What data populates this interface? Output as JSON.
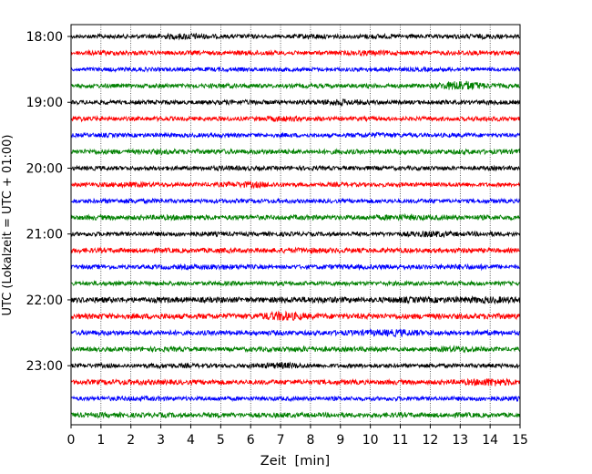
{
  "chart_data": {
    "type": "line",
    "title": "",
    "xlabel": "Zeit  [min]",
    "ylabel": "UTC (Lokalzeit = UTC + 01:00)",
    "xlim": [
      0,
      15
    ],
    "x_ticks": [
      0,
      1,
      2,
      3,
      4,
      5,
      6,
      7,
      8,
      9,
      10,
      11,
      12,
      13,
      14,
      15
    ],
    "y_tick_labels": [
      "18:00",
      "19:00",
      "20:00",
      "21:00",
      "22:00",
      "23:00"
    ],
    "grid": {
      "x": true,
      "y": false,
      "style": "dotted"
    },
    "trace_interval_min": 15,
    "start_time": "18:00",
    "color_cycle": [
      "#000000",
      "#ff0000",
      "#0000ff",
      "#008000"
    ],
    "series": [
      {
        "start": "18:00",
        "values": [
          0.25,
          0.35,
          0.3,
          0.4,
          0.55,
          0.3,
          0.35,
          0.25,
          0.45,
          0.3,
          0.4,
          0.35,
          0.3,
          0.35,
          0.4,
          0.3
        ]
      },
      {
        "start": "18:15",
        "values": [
          0.3,
          0.4,
          0.35,
          0.3,
          0.35,
          0.3,
          0.4,
          0.35,
          0.3,
          0.35,
          0.45,
          0.35,
          0.3,
          0.4,
          0.35,
          0.3
        ]
      },
      {
        "start": "18:30",
        "values": [
          0.3,
          0.3,
          0.35,
          0.3,
          0.3,
          0.35,
          0.3,
          0.35,
          0.3,
          0.3,
          0.35,
          0.3,
          0.35,
          0.3,
          0.3,
          0.3
        ]
      },
      {
        "start": "18:45",
        "values": [
          0.3,
          0.35,
          0.3,
          0.35,
          0.3,
          0.4,
          0.35,
          0.3,
          0.35,
          0.3,
          0.35,
          0.3,
          0.35,
          0.9,
          0.4,
          0.3
        ]
      },
      {
        "start": "19:00",
        "values": [
          0.3,
          0.35,
          0.3,
          0.35,
          0.3,
          0.35,
          0.4,
          0.3,
          0.35,
          0.55,
          0.35,
          0.3,
          0.35,
          0.3,
          0.4,
          0.3
        ]
      },
      {
        "start": "19:15",
        "values": [
          0.45,
          0.35,
          0.3,
          0.35,
          0.3,
          0.35,
          0.3,
          0.5,
          0.35,
          0.3,
          0.35,
          0.3,
          0.35,
          0.3,
          0.4,
          0.3
        ]
      },
      {
        "start": "19:30",
        "values": [
          0.3,
          0.35,
          0.3,
          0.35,
          0.3,
          0.35,
          0.3,
          0.35,
          0.3,
          0.3,
          0.45,
          0.35,
          0.3,
          0.35,
          0.3,
          0.3
        ]
      },
      {
        "start": "19:45",
        "values": [
          0.35,
          0.4,
          0.35,
          0.45,
          0.35,
          0.4,
          0.35,
          0.4,
          0.35,
          0.4,
          0.35,
          0.4,
          0.35,
          0.4,
          0.35,
          0.4
        ]
      },
      {
        "start": "20:00",
        "values": [
          0.3,
          0.35,
          0.3,
          0.35,
          0.3,
          0.4,
          0.35,
          0.3,
          0.35,
          0.3,
          0.35,
          0.3,
          0.35,
          0.3,
          0.35,
          0.3
        ]
      },
      {
        "start": "20:15",
        "values": [
          0.3,
          0.35,
          0.45,
          0.35,
          0.3,
          0.35,
          0.55,
          0.35,
          0.3,
          0.35,
          0.3,
          0.35,
          0.3,
          0.35,
          0.3,
          0.3
        ]
      },
      {
        "start": "20:30",
        "values": [
          0.3,
          0.35,
          0.4,
          0.35,
          0.3,
          0.35,
          0.3,
          0.35,
          0.3,
          0.3,
          0.35,
          0.3,
          0.35,
          0.3,
          0.35,
          0.3
        ]
      },
      {
        "start": "20:45",
        "values": [
          0.35,
          0.4,
          0.35,
          0.4,
          0.45,
          0.35,
          0.4,
          0.35,
          0.4,
          0.35,
          0.4,
          0.5,
          0.4,
          0.35,
          0.4,
          0.35
        ]
      },
      {
        "start": "21:00",
        "values": [
          0.3,
          0.35,
          0.3,
          0.35,
          0.4,
          0.35,
          0.3,
          0.35,
          0.3,
          0.35,
          0.3,
          0.35,
          0.55,
          0.35,
          0.4,
          0.3
        ]
      },
      {
        "start": "21:15",
        "values": [
          0.35,
          0.4,
          0.35,
          0.4,
          0.35,
          0.4,
          0.35,
          0.4,
          0.45,
          0.4,
          0.35,
          0.4,
          0.35,
          0.4,
          0.35,
          0.35
        ]
      },
      {
        "start": "21:30",
        "values": [
          0.3,
          0.35,
          0.3,
          0.35,
          0.4,
          0.45,
          0.35,
          0.3,
          0.35,
          0.4,
          0.35,
          0.4,
          0.35,
          0.45,
          0.4,
          0.3
        ]
      },
      {
        "start": "21:45",
        "values": [
          0.3,
          0.35,
          0.3,
          0.35,
          0.3,
          0.35,
          0.3,
          0.35,
          0.3,
          0.35,
          0.3,
          0.35,
          0.3,
          0.35,
          0.3,
          0.3
        ]
      },
      {
        "start": "22:00",
        "values": [
          0.4,
          0.45,
          0.4,
          0.45,
          0.4,
          0.45,
          0.4,
          0.45,
          0.5,
          0.45,
          0.4,
          0.5,
          0.45,
          0.5,
          0.55,
          0.5
        ]
      },
      {
        "start": "22:15",
        "values": [
          0.4,
          0.45,
          0.4,
          0.45,
          0.4,
          0.45,
          0.4,
          0.8,
          0.45,
          0.4,
          0.45,
          0.4,
          0.45,
          0.4,
          0.45,
          0.45
        ]
      },
      {
        "start": "22:30",
        "values": [
          0.35,
          0.4,
          0.35,
          0.4,
          0.35,
          0.4,
          0.35,
          0.4,
          0.35,
          0.4,
          0.5,
          0.6,
          0.4,
          0.35,
          0.4,
          0.35
        ]
      },
      {
        "start": "22:45",
        "values": [
          0.3,
          0.35,
          0.3,
          0.4,
          0.35,
          0.3,
          0.35,
          0.4,
          0.45,
          0.35,
          0.4,
          0.3,
          0.35,
          0.55,
          0.35,
          0.3
        ]
      },
      {
        "start": "23:00",
        "values": [
          0.3,
          0.35,
          0.3,
          0.4,
          0.35,
          0.3,
          0.35,
          0.55,
          0.35,
          0.3,
          0.35,
          0.3,
          0.35,
          0.3,
          0.35,
          0.3
        ]
      },
      {
        "start": "23:15",
        "values": [
          0.35,
          0.4,
          0.45,
          0.4,
          0.35,
          0.4,
          0.35,
          0.4,
          0.35,
          0.4,
          0.35,
          0.4,
          0.35,
          0.4,
          0.7,
          0.4
        ]
      },
      {
        "start": "23:30",
        "values": [
          0.3,
          0.35,
          0.4,
          0.35,
          0.3,
          0.35,
          0.3,
          0.35,
          0.3,
          0.35,
          0.3,
          0.35,
          0.3,
          0.35,
          0.4,
          0.35
        ]
      },
      {
        "start": "23:45",
        "values": [
          0.35,
          0.4,
          0.35,
          0.4,
          0.35,
          0.4,
          0.35,
          0.4,
          0.35,
          0.4,
          0.35,
          0.4,
          0.35,
          0.4,
          0.35,
          0.35
        ]
      }
    ]
  }
}
